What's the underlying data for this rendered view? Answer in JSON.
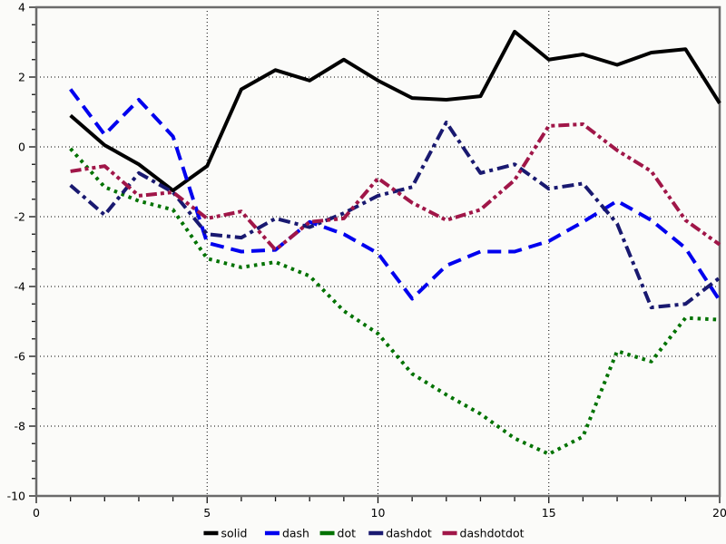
{
  "figure": {
    "background": "#fbfbf9",
    "frame_color": "#6b6b6b",
    "grid_style": "dotted-black"
  },
  "axes": {
    "x": {
      "min": 0,
      "max": 20,
      "minor_step": 1,
      "major_ticks": [
        0,
        5,
        10,
        15,
        20
      ],
      "tick_labels": [
        "0",
        "5",
        "10",
        "15",
        "20"
      ]
    },
    "y": {
      "min": -10,
      "max": 4,
      "minor_step": 0.5,
      "major_ticks": [
        4,
        2,
        0,
        -2,
        -4,
        -6,
        -8,
        -10
      ],
      "tick_labels": [
        "4",
        "2",
        "0",
        "-2",
        "-4",
        "-6",
        "-8",
        "-10"
      ]
    }
  },
  "chart_data": {
    "type": "line",
    "title": "",
    "xlabel": "",
    "ylabel": "",
    "xlim": [
      0,
      20
    ],
    "ylim": [
      -10,
      4
    ],
    "grid": true,
    "legend_position": "bottom-center",
    "x": [
      1,
      2,
      3,
      4,
      5,
      6,
      7,
      8,
      9,
      10,
      11,
      12,
      13,
      14,
      15,
      16,
      17,
      18,
      19,
      20
    ],
    "series": [
      {
        "name": "solid",
        "color": "#000000",
        "dash": "solid",
        "values": [
          0.9,
          0.05,
          -0.5,
          -1.25,
          -0.55,
          1.65,
          2.2,
          1.9,
          2.5,
          1.9,
          1.4,
          1.35,
          1.45,
          3.3,
          2.5,
          2.65,
          2.35,
          2.7,
          2.8,
          1.25
        ]
      },
      {
        "name": "dash",
        "color": "#0000ee",
        "dash": "dash",
        "values": [
          1.65,
          0.35,
          1.35,
          0.3,
          -2.75,
          -3.0,
          -2.95,
          -2.15,
          -2.5,
          -3.05,
          -4.35,
          -3.4,
          -3.0,
          -3.0,
          -2.7,
          -2.15,
          -1.55,
          -2.1,
          -2.9,
          -4.4
        ]
      },
      {
        "name": "dot",
        "color": "#007200",
        "dash": "dot",
        "values": [
          -0.05,
          -1.15,
          -1.55,
          -1.8,
          -3.2,
          -3.45,
          -3.3,
          -3.7,
          -4.7,
          -5.35,
          -6.5,
          -7.1,
          -7.65,
          -8.35,
          -8.8,
          -8.3,
          -5.85,
          -6.15,
          -4.9,
          -4.95
        ]
      },
      {
        "name": "dashdot",
        "color": "#191970",
        "dash": "dashdot",
        "values": [
          -1.1,
          -1.95,
          -0.75,
          -1.3,
          -2.5,
          -2.6,
          -2.05,
          -2.3,
          -1.9,
          -1.4,
          -1.15,
          0.7,
          -0.75,
          -0.5,
          -1.2,
          -1.05,
          -2.2,
          -4.6,
          -4.5,
          -3.75
        ]
      },
      {
        "name": "dashdotdot",
        "color": "#a01648",
        "dash": "dashdotdot",
        "values": [
          -0.7,
          -0.55,
          -1.4,
          -1.3,
          -2.05,
          -1.85,
          -2.95,
          -2.15,
          -2.05,
          -0.9,
          -1.6,
          -2.1,
          -1.8,
          -0.95,
          0.6,
          0.65,
          -0.1,
          -0.7,
          -2.1,
          -2.8
        ]
      }
    ],
    "legend_labels": [
      "solid",
      "dash",
      "dot",
      "dashdot",
      "dashdotdot"
    ]
  }
}
